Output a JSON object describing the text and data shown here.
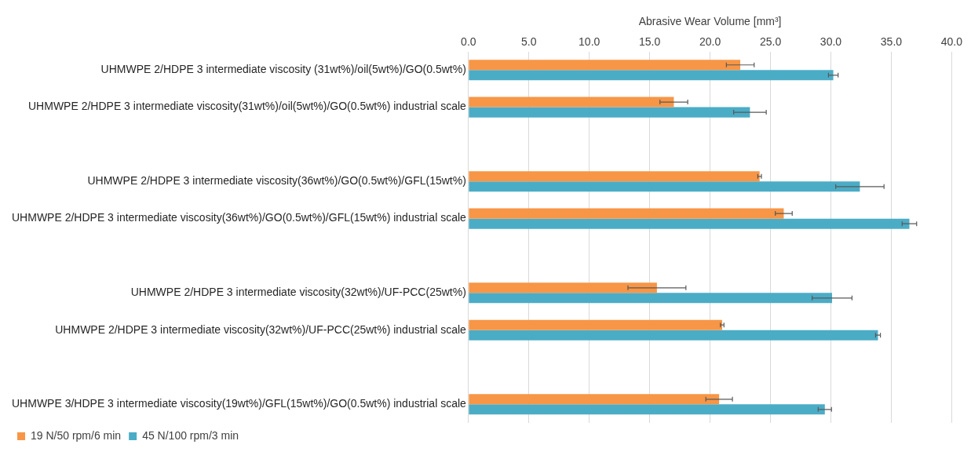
{
  "chart_data": {
    "type": "bar",
    "orientation": "horizontal",
    "xlabel": "Abrasive Wear Volume [mm³]",
    "categories": [
      "UHMWPE 2/HDPE 3 intermediate viscosity (31wt%)/oil(5wt%)/GO(0.5wt%)",
      "UHMWPE 2/HDPE 3 intermediate viscosity(31wt%)/oil(5wt%)/GO(0.5wt%) industrial scale",
      null,
      "UHMWPE 2/HDPE 3 intermediate viscosity(36wt%)/GO(0.5wt%)/GFL(15wt%)",
      "UHMWPE 2/HDPE 3 intermediate viscosity(36wt%)/GO(0.5wt%)/GFL(15wt%) industrial scale",
      null,
      "UHMWPE 2/HDPE 3 intermediate viscosity(32wt%)/UF-PCC(25wt%)",
      "UHMWPE 2/HDPE 3 intermediate viscosity(32wt%)/UF-PCC(25wt%) industrial scale",
      null,
      "UHMWPE 3/HDPE 3 intermediate viscosity(19wt%)/GFL(15wt%)/GO(0.5wt%) industrial scale"
    ],
    "series": [
      {
        "name": "19 N/50 rpm/6 min",
        "color": "#f79646",
        "values": [
          22.5,
          17.0,
          null,
          24.1,
          26.1,
          null,
          15.6,
          21.0,
          null,
          20.75
        ],
        "errors": [
          1.15,
          1.15,
          null,
          0.15,
          0.7,
          null,
          2.4,
          0.15,
          null,
          1.1
        ]
      },
      {
        "name": "45 N/100 rpm/3 min",
        "color": "#4bacc6",
        "values": [
          30.2,
          23.3,
          null,
          32.4,
          36.5,
          null,
          30.1,
          33.9,
          null,
          29.5
        ],
        "errors": [
          0.4,
          1.35,
          null,
          2.0,
          0.6,
          null,
          1.65,
          0.2,
          null,
          0.55
        ]
      }
    ],
    "xlim": [
      0,
      40
    ],
    "xticks": [
      {
        "value": 0,
        "label": "0.0"
      },
      {
        "value": 5,
        "label": "5.0"
      },
      {
        "value": 10,
        "label": "10.0"
      },
      {
        "value": 15,
        "label": "15.0"
      },
      {
        "value": 20,
        "label": "20.0"
      },
      {
        "value": 25,
        "label": "25.0"
      },
      {
        "value": 30,
        "label": "30.0"
      },
      {
        "value": 35,
        "label": "35.0"
      },
      {
        "value": 40,
        "label": "40.0"
      }
    ],
    "grid": "x",
    "legend": "bottom"
  }
}
